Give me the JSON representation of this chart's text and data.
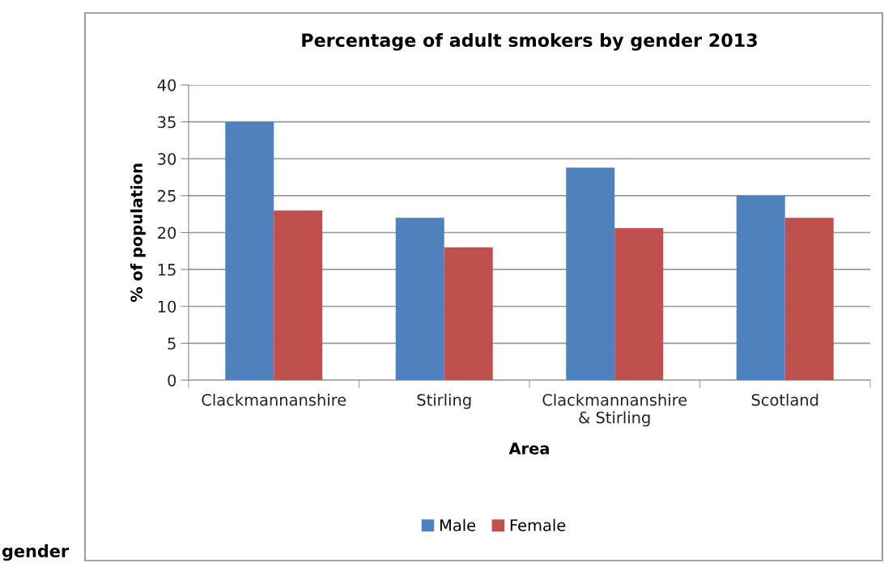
{
  "chart_data": {
    "type": "bar",
    "title": "Percentage of adult smokers by gender 2013",
    "xlabel": "Area",
    "ylabel": "% of population",
    "categories": [
      "Clackmannanshire",
      "Stirling",
      "Clackmannanshire\n& Stirling",
      "Scotland"
    ],
    "series": [
      {
        "name": "Male",
        "color": "#4f81bd",
        "values": [
          35,
          22,
          28.8,
          25
        ]
      },
      {
        "name": "Female",
        "color": "#c0504d",
        "values": [
          23,
          18,
          20.6,
          22
        ]
      }
    ],
    "ylim": [
      0,
      40
    ],
    "yticks": [
      0,
      5,
      10,
      15,
      20,
      25,
      30,
      35,
      40
    ],
    "grid": "y",
    "legend": "bottom",
    "annotations": [
      "gender"
    ]
  }
}
